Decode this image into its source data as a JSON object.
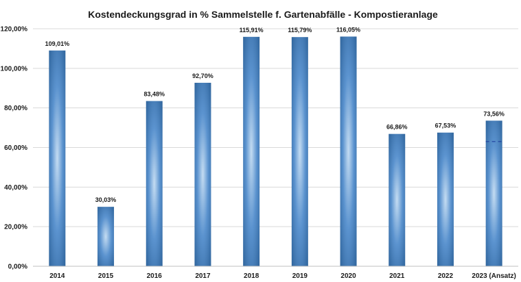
{
  "chart_data": {
    "type": "bar",
    "title": "Kostendeckungsgrad in % Sammelstelle f. Gartenabfälle - Kompostieranlage",
    "categories": [
      "2014",
      "2015",
      "2016",
      "2017",
      "2018",
      "2019",
      "2020",
      "2021",
      "2022",
      "2023 (Ansatz)"
    ],
    "values": [
      109.01,
      30.03,
      83.48,
      92.7,
      115.91,
      115.79,
      116.05,
      66.86,
      67.53,
      73.56
    ],
    "data_labels": [
      "109,01%",
      "30,03%",
      "83,48%",
      "92,70%",
      "115,91%",
      "115,79%",
      "116,05%",
      "66,86%",
      "67,53%",
      "73,56%"
    ],
    "y_ticks": [
      "0,00%",
      "20,00%",
      "40,00%",
      "60,00%",
      "80,00%",
      "100,00%",
      "120,00%"
    ],
    "y_tick_values": [
      0,
      20,
      40,
      60,
      80,
      100,
      120
    ],
    "ylim": [
      0,
      120
    ],
    "xlabel": "",
    "ylabel": "",
    "grid": true,
    "legend": "none",
    "colors": {
      "bar_dark": "#2a5f96",
      "bar_light": "#c4dcf2",
      "grid": "#d9d9d9",
      "axis": "#bfbfbf",
      "marker": "#1f3f9e"
    }
  }
}
